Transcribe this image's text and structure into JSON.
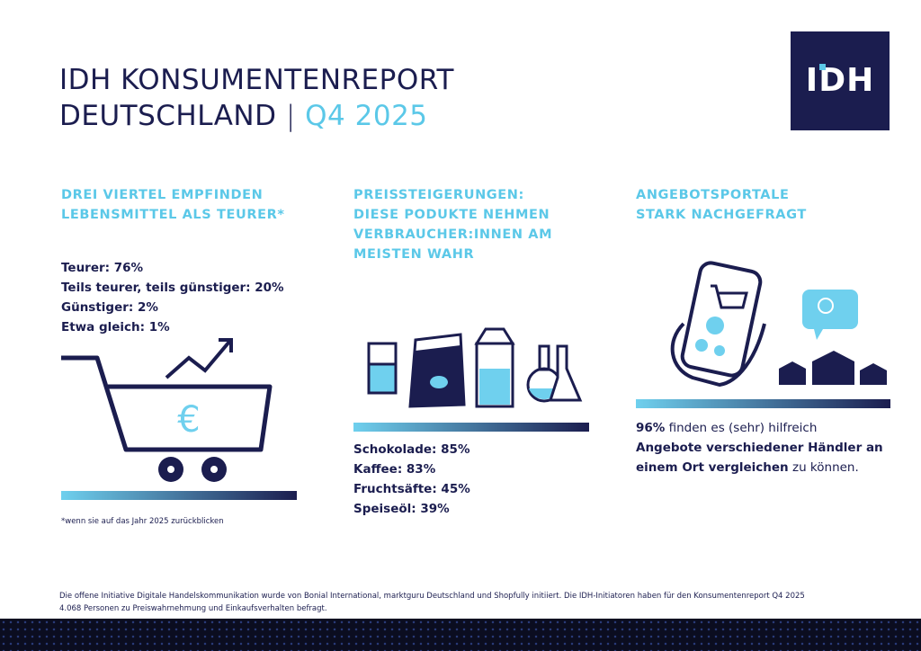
{
  "header": {
    "title_line1": "IDH KONSUMENTENREPORT",
    "title_line2": "DEUTSCHLAND",
    "title_period": "Q4 2025",
    "logo": "IDH"
  },
  "columns": [
    {
      "heading": [
        "DREI VIERTEL EMPFINDEN",
        "LEBENSMITTEL ALS TEURER*"
      ],
      "items": [
        "Teurer: 76%",
        "Teils teurer, teils günstiger: 20%",
        "Günstiger: 2%",
        "Etwa gleich: 1%"
      ],
      "note": "*wenn sie auf das Jahr 2025 zurückblicken"
    },
    {
      "heading": [
        "PREISSTEIGERUNGEN:",
        "DIESE PODUKTE NEHMEN",
        "VERBRAUCHER:INNEN AM",
        "MEISTEN WAHR"
      ],
      "items": [
        "Schokolade: 85%",
        "Kaffee: 83%",
        "Fruchtsäfte: 45%",
        "Speiseöl: 39%"
      ]
    },
    {
      "heading": [
        "ANGEBOTSPORTALE",
        "STARK NACHGEFRAGT"
      ],
      "text": {
        "highlight": "96%",
        "part1": " finden es (sehr) hilfreich",
        "bold": "Angebote verschiedener Händler an einem Ort vergleichen",
        "part2": " zu können."
      }
    }
  ],
  "footer": [
    "Die offene Initiative Digitale Handelskommunikation wurde von Bonial International, marktguru Deutschland und Shopfully initiiert. Die IDH-Initiatoren haben für den Konsumentenreport Q4 2025",
    "4.068 Personen zu Preiswahrnehmung und Einkaufsverhalten befragt."
  ]
}
